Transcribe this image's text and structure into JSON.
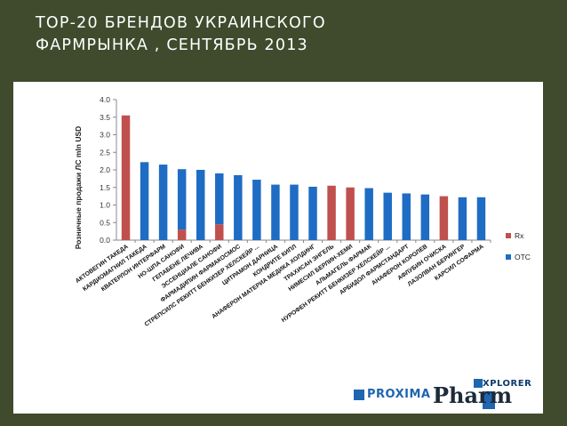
{
  "header": {
    "title_line1": "ТОР-20 БРЕНДОВ УКРАИНСКОГО",
    "title_line2": "ФАРМРЫНКА , СЕНТЯБРЬ 2013"
  },
  "logos": {
    "proxima": "PROXIMA",
    "pharm": "Pharm",
    "xplorer": "XPLORER"
  },
  "colors": {
    "header_bg": "#3f4b2c",
    "side_panel": "#a9b191",
    "rx": "#c0504d",
    "otc": "#1f6cc4"
  },
  "chart_data": {
    "type": "bar",
    "stacked": true,
    "ylabel": "Розничные продажи ЛС mln USD",
    "ylim": [
      0,
      4.0
    ],
    "yticks": [
      "0.0",
      "0.5",
      "1.0",
      "1.5",
      "2.0",
      "2.5",
      "3.0",
      "3.5",
      "4.0"
    ],
    "grid": false,
    "legend_position": "right",
    "categories": [
      "АКТОВЕГИН ТАКЕДА",
      "КАРДИОМАГНИЛ ТАКЕДА",
      "КВАТЕРЛОН ИНТЕРФАРМ",
      "НО-ШПА САНОФИ",
      "ГЕПАБЕНЕ ЛЕЧИВА",
      "ЭССЕНЦИАЛЕ САНОФИ",
      "ФАРМАДИПИН ФАРМАКОСМОС",
      "СТРЕПСИЛС РЕКИТТ БЕНКИЗЕР ХЕЛСКЕЙР ...",
      "ЦИТРАМОН ДАРНИЦА",
      "КОНДРИТЕ КИПЛ",
      "АНАФЕРОН МАТЕРИА МЕДИКА ХОЛДИНГ",
      "ТРАХИСАН ЭНГЕЛЬ",
      "НИМЕСИЛ БЕРЛИН-ХЕМИ",
      "АЛЬМАГЕЛЬ ФАРМАК",
      "НУРОФЕН РЕКИТТ БЕНКИЗЕР ХЕЛСКЕЙР ...",
      "АРБИДОЛ ФАРМСТАНДАРТ",
      "АНАФЕРОН КОРОЛЕВ",
      "АФЛУБИН ОЧИСКА",
      "ЛАЗОЛВАН БЕРИНГЕР",
      "КАРСИЛ СОФАРМА"
    ],
    "series": [
      {
        "name": "Rx",
        "values": [
          3.55,
          0,
          0,
          0.3,
          0,
          0.45,
          0,
          0,
          0,
          0,
          0,
          1.55,
          1.5,
          0,
          0,
          0,
          0,
          1.25,
          0,
          0
        ]
      },
      {
        "name": "OTC",
        "values": [
          0,
          2.22,
          2.15,
          1.72,
          2.0,
          1.45,
          1.85,
          1.72,
          1.58,
          1.58,
          1.52,
          0,
          0,
          1.48,
          1.35,
          1.33,
          1.3,
          0,
          1.22,
          1.22
        ]
      }
    ]
  }
}
